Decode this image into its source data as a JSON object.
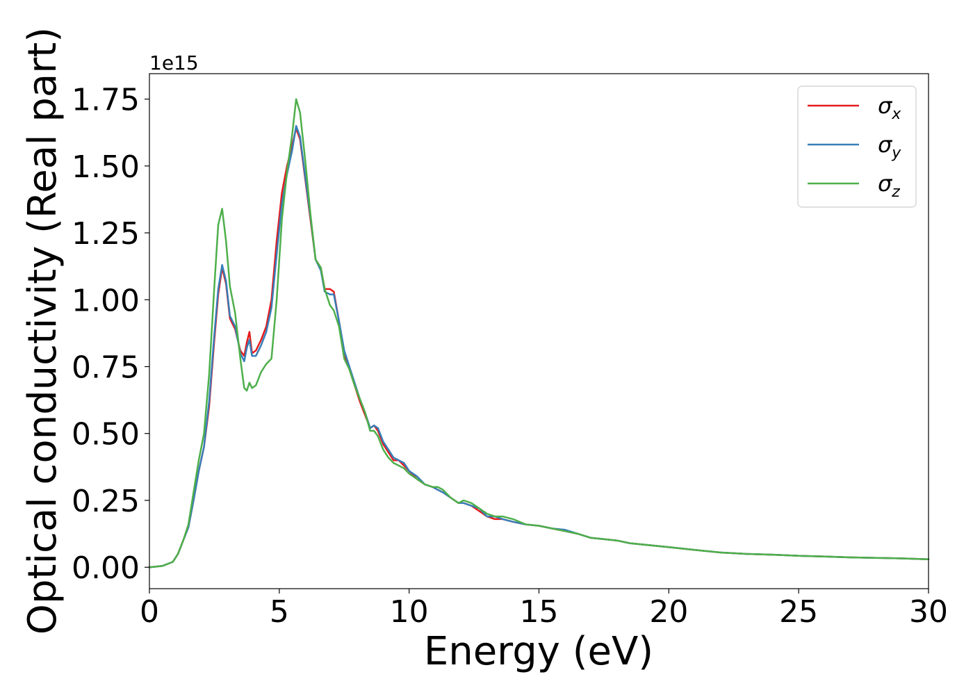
{
  "chart_data": {
    "type": "line",
    "xlabel": "Energy (eV)",
    "ylabel": "Optical conductivity (Real part)",
    "y_offset_label": "1e15",
    "xlim": [
      0,
      30
    ],
    "ylim": [
      -0.08,
      1.845
    ],
    "x_ticks": [
      0,
      5,
      10,
      15,
      20,
      25,
      30
    ],
    "x_tick_labels": [
      "0",
      "5",
      "10",
      "15",
      "20",
      "25",
      "30"
    ],
    "y_ticks": [
      0,
      0.25,
      0.5,
      0.75,
      1.0,
      1.25,
      1.5,
      1.75
    ],
    "y_tick_labels": [
      "0.00",
      "0.25",
      "0.50",
      "0.75",
      "1.00",
      "1.25",
      "1.50",
      "1.75"
    ],
    "grid": false,
    "legend_position": "top-right",
    "series": [
      {
        "name": "σx",
        "symbol": "σ",
        "subscript": "x",
        "color": "#e41a1c",
        "x": [
          0,
          0.5,
          0.9,
          1.1,
          1.3,
          1.5,
          1.7,
          1.9,
          2.1,
          2.3,
          2.5,
          2.65,
          2.8,
          2.95,
          3.1,
          3.3,
          3.5,
          3.65,
          3.75,
          3.85,
          3.95,
          4.1,
          4.3,
          4.5,
          4.7,
          4.9,
          5.1,
          5.3,
          5.5,
          5.65,
          5.8,
          6.0,
          6.2,
          6.4,
          6.6,
          6.75,
          6.95,
          7.1,
          7.3,
          7.5,
          7.7,
          7.9,
          8.1,
          8.3,
          8.5,
          8.65,
          8.8,
          9.0,
          9.2,
          9.4,
          9.6,
          9.8,
          10.0,
          10.3,
          10.6,
          10.9,
          11.1,
          11.3,
          11.6,
          11.9,
          12.1,
          12.4,
          12.7,
          13.0,
          13.3,
          13.6,
          14.0,
          14.5,
          15.0,
          15.5,
          16.0,
          16.5,
          17.0,
          17.5,
          18.0,
          18.5,
          19.0,
          19.5,
          20.0,
          21.0,
          22.0,
          23.0,
          24.0,
          25.0,
          26.0,
          27.0,
          28.0,
          29.0,
          30.0
        ],
        "y": [
          0,
          0.005,
          0.02,
          0.05,
          0.1,
          0.15,
          0.25,
          0.36,
          0.45,
          0.6,
          0.85,
          1.02,
          1.12,
          1.06,
          0.93,
          0.89,
          0.81,
          0.79,
          0.84,
          0.88,
          0.8,
          0.81,
          0.85,
          0.9,
          1.0,
          1.22,
          1.4,
          1.5,
          1.58,
          1.64,
          1.6,
          1.45,
          1.3,
          1.15,
          1.12,
          1.04,
          1.04,
          1.03,
          0.92,
          0.8,
          0.74,
          0.68,
          0.62,
          0.57,
          0.52,
          0.53,
          0.51,
          0.46,
          0.43,
          0.4,
          0.4,
          0.38,
          0.36,
          0.33,
          0.31,
          0.3,
          0.29,
          0.28,
          0.26,
          0.24,
          0.24,
          0.23,
          0.21,
          0.19,
          0.18,
          0.18,
          0.17,
          0.16,
          0.155,
          0.145,
          0.135,
          0.125,
          0.11,
          0.105,
          0.1,
          0.09,
          0.085,
          0.08,
          0.075,
          0.065,
          0.055,
          0.05,
          0.047,
          0.043,
          0.04,
          0.037,
          0.035,
          0.033,
          0.03
        ]
      },
      {
        "name": "σy",
        "symbol": "σ",
        "subscript": "y",
        "color": "#377eb8",
        "x": [
          0,
          0.5,
          0.9,
          1.1,
          1.3,
          1.5,
          1.7,
          1.9,
          2.1,
          2.3,
          2.5,
          2.65,
          2.8,
          2.95,
          3.1,
          3.3,
          3.5,
          3.65,
          3.75,
          3.85,
          3.95,
          4.1,
          4.3,
          4.5,
          4.7,
          4.9,
          5.1,
          5.3,
          5.5,
          5.65,
          5.8,
          6.0,
          6.2,
          6.4,
          6.6,
          6.75,
          6.95,
          7.1,
          7.3,
          7.5,
          7.7,
          7.9,
          8.1,
          8.3,
          8.5,
          8.65,
          8.8,
          9.0,
          9.2,
          9.4,
          9.6,
          9.8,
          10.0,
          10.3,
          10.6,
          10.9,
          11.1,
          11.3,
          11.6,
          11.9,
          12.1,
          12.4,
          12.7,
          13.0,
          13.3,
          13.6,
          14.0,
          14.5,
          15.0,
          15.5,
          16.0,
          16.5,
          17.0,
          17.5,
          18.0,
          18.5,
          19.0,
          19.5,
          20.0,
          21.0,
          22.0,
          23.0,
          24.0,
          25.0,
          26.0,
          27.0,
          28.0,
          29.0,
          30.0
        ],
        "y": [
          0,
          0.005,
          0.02,
          0.05,
          0.1,
          0.15,
          0.25,
          0.36,
          0.45,
          0.62,
          0.87,
          1.04,
          1.13,
          1.07,
          0.94,
          0.9,
          0.8,
          0.77,
          0.82,
          0.85,
          0.79,
          0.79,
          0.83,
          0.88,
          0.97,
          1.17,
          1.36,
          1.47,
          1.56,
          1.65,
          1.61,
          1.46,
          1.31,
          1.15,
          1.11,
          1.03,
          1.02,
          1.02,
          0.92,
          0.81,
          0.75,
          0.69,
          0.63,
          0.58,
          0.52,
          0.53,
          0.52,
          0.47,
          0.44,
          0.41,
          0.4,
          0.39,
          0.36,
          0.34,
          0.31,
          0.3,
          0.29,
          0.28,
          0.26,
          0.24,
          0.24,
          0.23,
          0.22,
          0.19,
          0.19,
          0.18,
          0.17,
          0.16,
          0.155,
          0.145,
          0.14,
          0.125,
          0.11,
          0.105,
          0.1,
          0.09,
          0.085,
          0.08,
          0.075,
          0.065,
          0.055,
          0.05,
          0.047,
          0.043,
          0.04,
          0.037,
          0.035,
          0.033,
          0.03
        ]
      },
      {
        "name": "σz",
        "symbol": "σ",
        "subscript": "z",
        "color": "#4daf4a",
        "x": [
          0,
          0.5,
          0.9,
          1.1,
          1.3,
          1.5,
          1.7,
          1.9,
          2.1,
          2.3,
          2.5,
          2.65,
          2.8,
          2.95,
          3.1,
          3.3,
          3.5,
          3.65,
          3.75,
          3.85,
          3.95,
          4.1,
          4.3,
          4.5,
          4.7,
          4.9,
          5.1,
          5.3,
          5.5,
          5.65,
          5.8,
          6.0,
          6.2,
          6.4,
          6.6,
          6.75,
          6.95,
          7.1,
          7.3,
          7.5,
          7.7,
          7.9,
          8.1,
          8.3,
          8.5,
          8.65,
          8.8,
          9.0,
          9.2,
          9.4,
          9.6,
          9.8,
          10.0,
          10.3,
          10.6,
          10.9,
          11.1,
          11.3,
          11.6,
          11.9,
          12.1,
          12.4,
          12.7,
          13.0,
          13.3,
          13.6,
          14.0,
          14.5,
          15.0,
          15.5,
          16.0,
          16.5,
          17.0,
          17.5,
          18.0,
          18.5,
          19.0,
          19.5,
          20.0,
          21.0,
          22.0,
          23.0,
          24.0,
          25.0,
          26.0,
          27.0,
          28.0,
          29.0,
          30.0
        ],
        "y": [
          0,
          0.005,
          0.02,
          0.05,
          0.1,
          0.16,
          0.28,
          0.4,
          0.5,
          0.72,
          1.05,
          1.28,
          1.34,
          1.22,
          1.05,
          0.95,
          0.78,
          0.67,
          0.66,
          0.69,
          0.67,
          0.68,
          0.73,
          0.76,
          0.78,
          1.0,
          1.3,
          1.48,
          1.62,
          1.75,
          1.7,
          1.52,
          1.32,
          1.15,
          1.12,
          1.04,
          0.98,
          0.96,
          0.9,
          0.78,
          0.74,
          0.68,
          0.63,
          0.58,
          0.51,
          0.51,
          0.49,
          0.44,
          0.41,
          0.39,
          0.38,
          0.37,
          0.35,
          0.33,
          0.31,
          0.3,
          0.3,
          0.29,
          0.26,
          0.24,
          0.25,
          0.24,
          0.22,
          0.2,
          0.19,
          0.19,
          0.18,
          0.16,
          0.155,
          0.145,
          0.135,
          0.125,
          0.11,
          0.105,
          0.1,
          0.09,
          0.085,
          0.08,
          0.075,
          0.065,
          0.055,
          0.05,
          0.047,
          0.043,
          0.04,
          0.037,
          0.035,
          0.033,
          0.03
        ]
      }
    ]
  }
}
